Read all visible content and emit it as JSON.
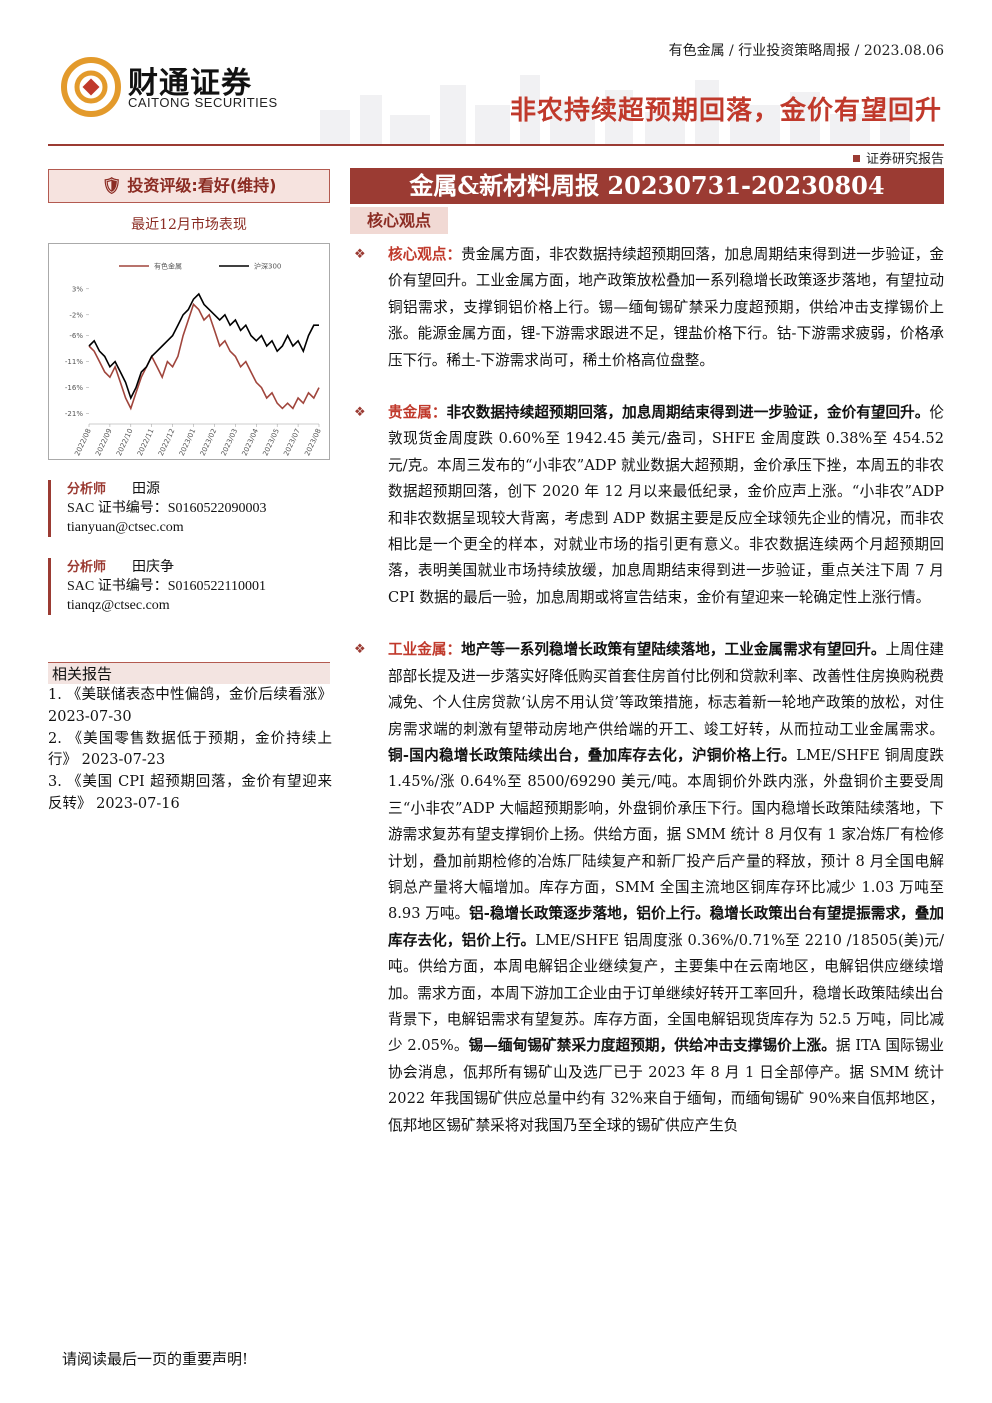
{
  "header": {
    "company_cn": "财通证券",
    "company_en": "CAITONG SECURITIES",
    "breadcrumb": "有色金属 / 行业投资策略周报 / 2023.08.06",
    "headline": "非农持续超预期回落，金价有望回升",
    "report_type": "证券研究报告"
  },
  "sidebar": {
    "rating": "投资评级:看好(维持)",
    "chart_caption": "最近12月市场表现",
    "analysts": [
      {
        "label": "分析师",
        "name": "田源",
        "sac": "SAC 证书编号：S0160522090003",
        "email": "tianyuan@ctsec.com"
      },
      {
        "label": "分析师",
        "name": "田庆争",
        "sac": "SAC 证书编号：S0160522110001",
        "email": "tianqz@ctsec.com"
      }
    ],
    "related_title": "相关报告",
    "related": [
      "1. 《美联储表态中性偏鸽，金价后续看涨》 2023-07-30",
      "2. 《美国零售数据低于预期，金价持续上行》 2023-07-23",
      "3. 《美国 CPI 超预期回落，金价有望迎来反转》 2023-07-16"
    ]
  },
  "chart_data": {
    "type": "line",
    "categories": [
      "2022/08",
      null,
      null,
      null,
      "2022/09",
      null,
      null,
      null,
      "2022/10",
      null,
      null,
      null,
      "2022/11",
      null,
      null,
      null,
      "2022/12",
      null,
      null,
      null,
      "2023/01",
      null,
      null,
      null,
      "2023/02",
      null,
      null,
      null,
      "2023/03",
      null,
      null,
      null,
      "2023/04",
      null,
      null,
      null,
      "2023/05",
      null,
      null,
      null,
      "2023/07",
      null,
      null,
      null,
      "2023/08"
    ],
    "series": [
      {
        "name": "有色金属",
        "color": "#a0453c",
        "values": [
          -8,
          -9,
          -11,
          -13,
          -14,
          -12,
          -15,
          -18,
          -20,
          -17,
          -14,
          -12,
          -10,
          -12,
          -14,
          -11,
          -12,
          -10,
          -6,
          -3,
          0,
          -1,
          -3,
          -2,
          -5,
          -8,
          -7,
          -9,
          -10,
          -12,
          -11,
          -13,
          -15,
          -16,
          -18,
          -17,
          -19,
          -20,
          -19,
          -20,
          -18,
          -19,
          -17,
          -18,
          -16
        ]
      },
      {
        "name": "沪深300",
        "color": "#000000",
        "values": [
          -8,
          -7,
          -9,
          -10,
          -12,
          -11,
          -13,
          -15,
          -18,
          -16,
          -13,
          -12,
          -10,
          -9,
          -8,
          -7,
          -6,
          -4,
          -2,
          -1,
          1,
          2,
          0,
          -1,
          -2,
          -3,
          -2,
          -4,
          -3,
          -5,
          -4,
          -6,
          -7,
          -6,
          -8,
          -7,
          -9,
          -8,
          -6,
          -8,
          -7,
          -9,
          -6,
          -4,
          -4
        ]
      }
    ],
    "ylim": [
      -23,
      4.5
    ],
    "yticks": [
      {
        "value": 3,
        "label": "3%"
      },
      {
        "value": -2,
        "label": "-2%"
      },
      {
        "value": -6,
        "label": "-6%"
      },
      {
        "value": -11,
        "label": "-11%"
      },
      {
        "value": -16,
        "label": "-16%"
      },
      {
        "value": -21,
        "label": "-21%"
      }
    ],
    "legend": "top"
  },
  "main": {
    "banner": "金属&新材料周报 20230731-20230804",
    "section": "核心观点",
    "paragraphs": [
      {
        "label": "核心观点：",
        "runs": [
          {
            "text": "贵金属方面，非农数据持续超预期回落，加息周期结束得到进一步验证，金价有望回升。工业金属方面，地产政策放松叠加一系列稳增长政策逐步落地，有望拉动铜铝需求，支撑铜铝价格上行。锡—缅甸锡矿禁采力度超预期，供给冲击支撑锡价上涨。能源金属方面，锂-下游需求跟进不足，锂盐价格下行。钴-下游需求疲弱，价格承压下行。稀土-下游需求尚可，稀土价格高位盘整。",
            "bold": false
          }
        ]
      },
      {
        "label": "贵金属：",
        "runs": [
          {
            "text": "非农数据持续超预期回落，加息周期结束得到进一步验证，金价有望回升。",
            "bold": true
          },
          {
            "text": "伦敦现货金周度跌 0.60%至 1942.45 美元/盎司，SHFE 金周度跌 0.38%至 454.52 元/克。本周三发布的“小非农”ADP 就业数据大超预期，金价承压下挫，本周五的非农数据超预期回落，创下 2020 年 12 月以来最低纪录，金价应声上涨。“小非农”ADP 和非农数据呈现较大背离，考虑到 ADP 数据主要是反应全球领先企业的情况，而非农相比是一个更全的样本，对就业市场的指引更有意义。非农数据连续两个月超预期回落，表明美国就业市场持续放缓，加息周期结束得到进一步验证，重点关注下周 7 月 CPI 数据的最后一验，加息周期或将宣告结束，金价有望迎来一轮确定性上涨行情。",
            "bold": false
          }
        ]
      },
      {
        "label": "工业金属：",
        "runs": [
          {
            "text": "地产等一系列稳增长政策有望陆续落地，工业金属需求有望回升。",
            "bold": true
          },
          {
            "text": "上周住建部部长提及进一步落实好降低购买首套住房首付比例和贷款利率、改善性住房换购税费减免、个人住房贷款‘认房不用认贷’等政策措施，标志着新一轮地产政策的放松，对住房需求端的刺激有望带动房地产供给端的开工、竣工好转，从而拉动工业金属需求。",
            "bold": false
          },
          {
            "text": "铜-国内稳增长政策陆续出台，叠加库存去化，沪铜价格上行。",
            "bold": true
          },
          {
            "text": "LME/SHFE 铜周度跌 1.45%/涨 0.64%至 8500/69290 美元/吨。本周铜价外跌内涨，外盘铜价主要受周三“小非农”ADP 大幅超预期影响，外盘铜价承压下行。国内稳增长政策陆续落地，下游需求复苏有望支撑铜价上扬。供给方面，据 SMM 统计 8 月仅有 1 家冶炼厂有检修计划，叠加前期检修的冶炼厂陆续复产和新厂投产后产量的释放，预计 8 月全国电解铜总产量将大幅增加。库存方面，SMM 全国主流地区铜库存环比减少 1.03 万吨至 8.93 万吨。",
            "bold": false
          },
          {
            "text": "铝-稳增长政策逐步落地，铝价上行。稳增长政策出台有望提振需求，叠加库存去化，铝价上行。",
            "bold": true
          },
          {
            "text": "LME/SHFE 铝周度涨 0.36%/0.71%至 2210 /18505(美)元/吨。供给方面，本周电解铝企业继续复产，主要集中在云南地区，电解铝供应继续增加。需求方面，本周下游加工企业由于订单继续好转开工率回升，稳增长政策陆续出台背景下，电解铝需求有望复苏。库存方面，全国电解铝现货库存为 52.5 万吨，同比减少 2.05%。",
            "bold": false
          },
          {
            "text": "锡—缅甸锡矿禁采力度超预期，供给冲击支撑锡价上涨。",
            "bold": true
          },
          {
            "text": "据 ITA 国际锡业协会消息，佤邦所有锡矿山及选厂已于 2023 年 8 月 1 日全部停产。据 SMM 统计 2022 年我国锡矿供应总量中约有 32%来自于缅甸，而缅甸锡矿 90%来自佤邦地区，佤邦地区锡矿禁采将对我国乃至全球的锡矿供应产生负",
            "bold": false
          }
        ]
      }
    ]
  },
  "footer": {
    "notice": "请阅读最后一页的重要声明!"
  }
}
